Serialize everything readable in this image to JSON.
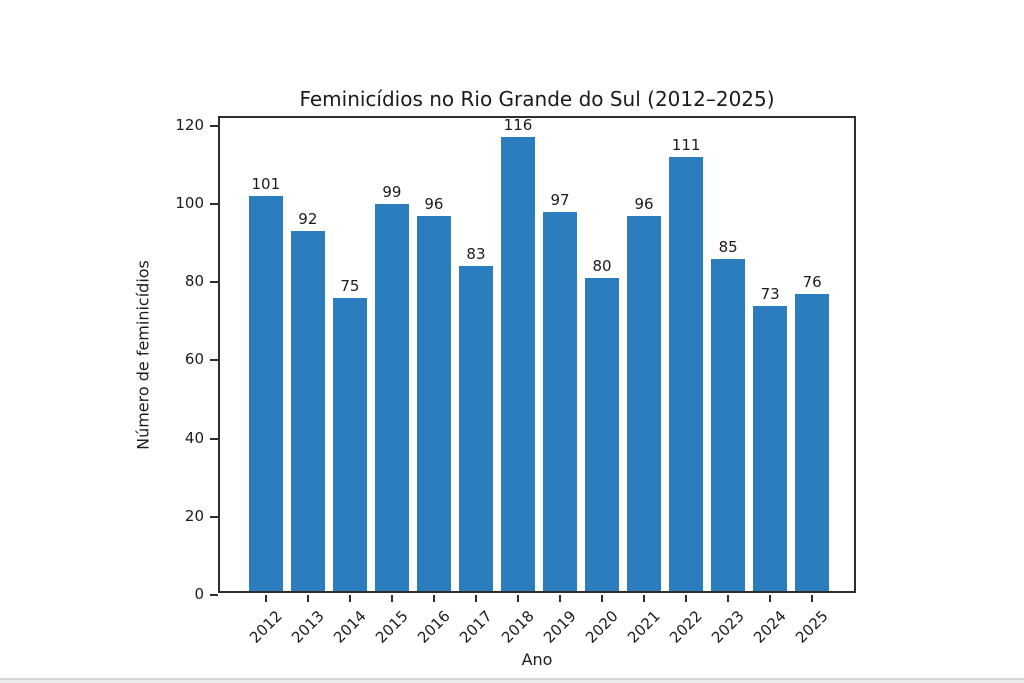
{
  "figure": {
    "background": "#ffffff"
  },
  "chart_data": {
    "type": "bar",
    "title": "Feminicídios no Rio Grande do Sul (2012–2025)",
    "xlabel": "Ano",
    "ylabel": "Número de feminicídios",
    "categories": [
      "2012",
      "2013",
      "2014",
      "2015",
      "2016",
      "2017",
      "2018",
      "2019",
      "2020",
      "2021",
      "2022",
      "2023",
      "2024",
      "2025"
    ],
    "values": [
      101,
      92,
      75,
      99,
      96,
      83,
      116,
      97,
      80,
      96,
      111,
      85,
      73,
      76
    ],
    "bar_color": "#2b7dbd",
    "yticks": [
      0,
      20,
      40,
      60,
      80,
      100,
      120
    ],
    "ylim": [
      0,
      120
    ],
    "xtick_rotation_deg": 45,
    "grid": false,
    "legend": null,
    "value_labels_shown": true
  }
}
